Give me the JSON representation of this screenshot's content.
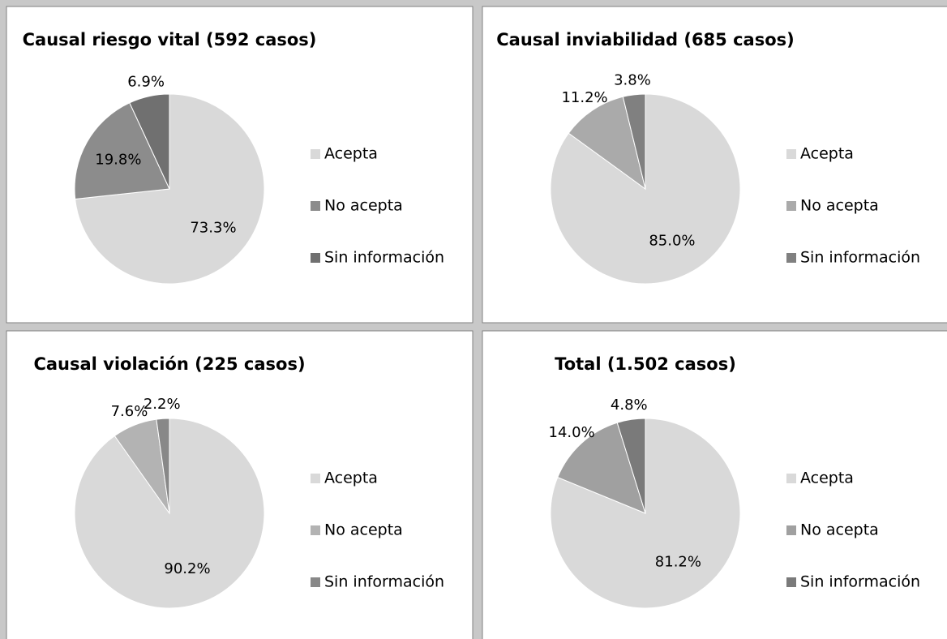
{
  "chart_data": [
    {
      "type": "pie",
      "title": "Causal riesgo vital (592 casos)",
      "categories": [
        "Acepta",
        "No acepta",
        "Sin información"
      ],
      "values": [
        73.3,
        19.8,
        6.9
      ],
      "value_labels": [
        "73.3%",
        "19.8%",
        "6.9%"
      ],
      "colors": [
        "#d9d9d9",
        "#8c8c8c",
        "#707070"
      ]
    },
    {
      "type": "pie",
      "title": "Causal inviabilidad (685 casos)",
      "categories": [
        "Acepta",
        "No acepta",
        "Sin información"
      ],
      "values": [
        85.0,
        11.2,
        3.8
      ],
      "value_labels": [
        "85.0%",
        "11.2%",
        "3.8%"
      ],
      "colors": [
        "#d9d9d9",
        "#aaaaaa",
        "#808080"
      ]
    },
    {
      "type": "pie",
      "title": "Causal violación (225 casos)",
      "categories": [
        "Acepta",
        "No acepta",
        "Sin información"
      ],
      "values": [
        90.2,
        7.6,
        2.2
      ],
      "value_labels": [
        "90.2%",
        "7.6%",
        "2.2%"
      ],
      "colors": [
        "#d9d9d9",
        "#b3b3b3",
        "#888888"
      ]
    },
    {
      "type": "pie",
      "title": "Total (1.502 casos)",
      "categories": [
        "Acepta",
        "No acepta",
        "Sin información"
      ],
      "values": [
        81.2,
        14.0,
        4.8
      ],
      "value_labels": [
        "81.2%",
        "14.0%",
        "4.8%"
      ],
      "colors": [
        "#d9d9d9",
        "#a0a0a0",
        "#7a7a7a"
      ]
    }
  ]
}
